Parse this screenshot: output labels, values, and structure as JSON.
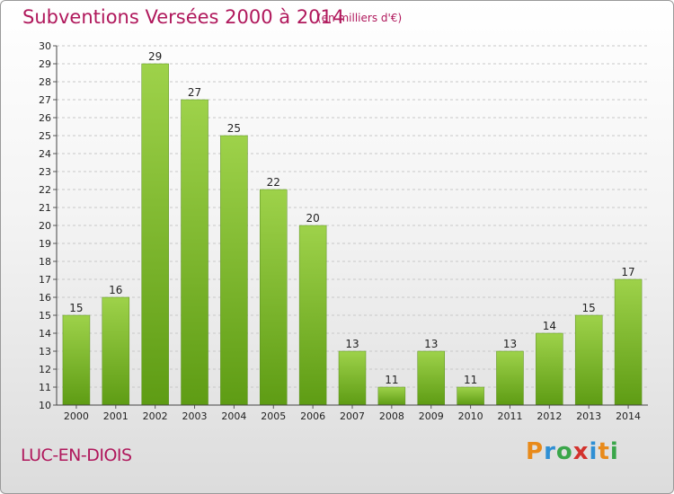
{
  "chart_data": {
    "type": "bar",
    "title": "Subventions Versées 2000 à 2014",
    "subtitle": "(en milliers d'€)",
    "categories": [
      "2000",
      "2001",
      "2002",
      "2003",
      "2004",
      "2005",
      "2006",
      "2007",
      "2008",
      "2009",
      "2010",
      "2011",
      "2012",
      "2013",
      "2014"
    ],
    "values": [
      15,
      16,
      29,
      27,
      25,
      22,
      20,
      13,
      11,
      13,
      11,
      13,
      14,
      15,
      17
    ],
    "ylim": [
      10,
      30
    ],
    "yticks": [
      "10",
      "11",
      "12",
      "13",
      "14",
      "15",
      "16",
      "17",
      "18",
      "19",
      "20",
      "21",
      "22",
      "23",
      "24",
      "25",
      "26",
      "27",
      "28",
      "29",
      "30"
    ],
    "grid": true,
    "bar_color": "#7cbc2c"
  },
  "commune": "LUC-EN-DIOIS",
  "logo": {
    "p": "P",
    "r": "r",
    "o": "o",
    "x": "x",
    "i": "i",
    "t": "t",
    "i2": "i"
  }
}
